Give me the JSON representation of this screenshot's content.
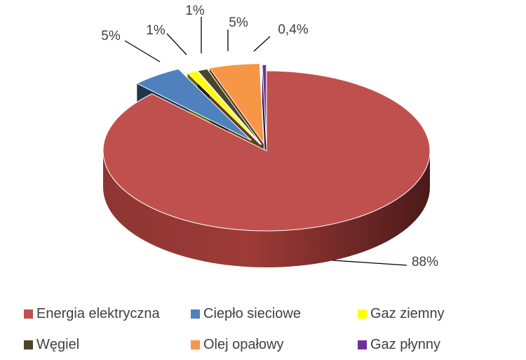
{
  "chart_data": {
    "type": "pie",
    "style": "3d-exploded",
    "legend_position": "bottom",
    "series": [
      {
        "name": "Energia elektryczna",
        "value": 88,
        "label": "88%",
        "color": "#c0504d"
      },
      {
        "name": "Ciepło sieciowe",
        "value": 5,
        "label": "5%",
        "color": "#4f81bd"
      },
      {
        "name": "Gaz ziemny",
        "value": 1,
        "label": "1%",
        "color": "#ffff00"
      },
      {
        "name": "Węgiel",
        "value": 1,
        "label": "1%",
        "color": "#4a452a"
      },
      {
        "name": "Olej opałowy",
        "value": 5,
        "label": "5%",
        "color": "#f79646"
      },
      {
        "name": "Gaz płynny",
        "value": 0.4,
        "label": "0,4%",
        "color": "#7030a0"
      }
    ]
  }
}
